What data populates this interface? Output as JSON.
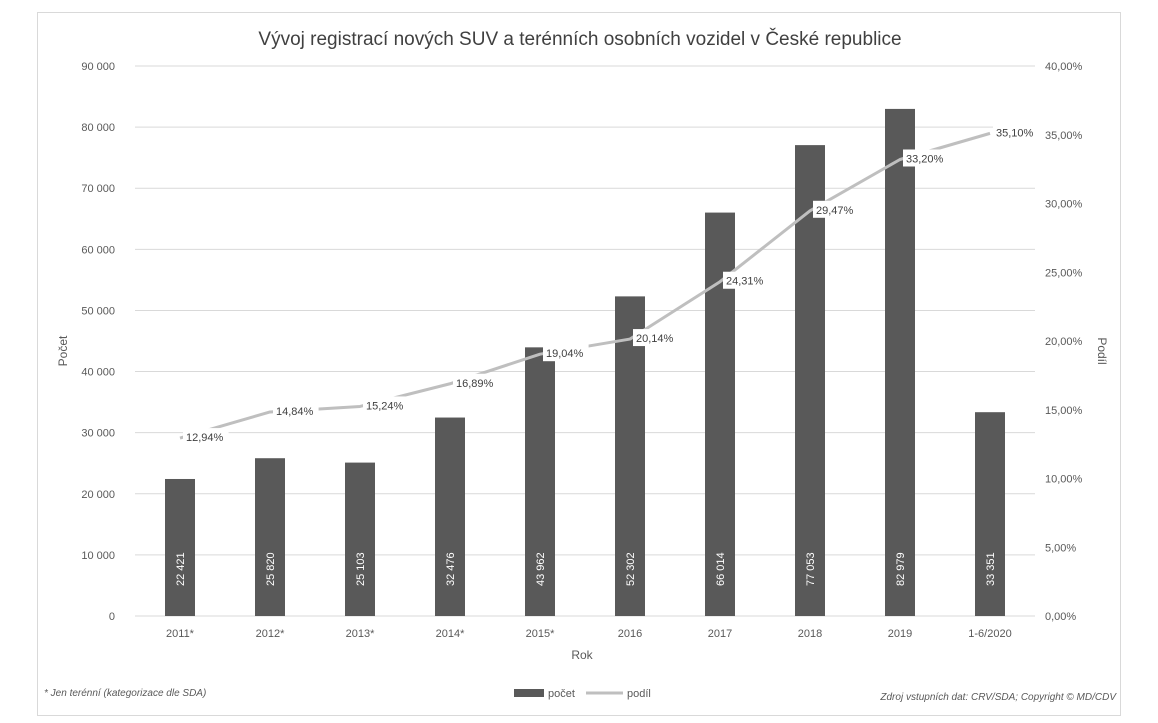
{
  "chart_data": {
    "type": "bar",
    "title": "Vývoj registrací nových SUV a terénních osobních vozidel v České republice",
    "xlabel": "Rok",
    "ylabel": "Počet",
    "y2label": "Podíl",
    "categories": [
      "2011*",
      "2012*",
      "2013*",
      "2014*",
      "2015*",
      "2016",
      "2017",
      "2018",
      "2019",
      "1-6/2020"
    ],
    "ylim": [
      0,
      90000
    ],
    "y2lim": [
      0,
      40
    ],
    "yticks": [
      "0",
      "10 000",
      "20 000",
      "30 000",
      "40 000",
      "50 000",
      "60 000",
      "70 000",
      "80 000",
      "90 000"
    ],
    "y2ticks": [
      "0,00%",
      "5,00%",
      "10,00%",
      "15,00%",
      "20,00%",
      "25,00%",
      "30,00%",
      "35,00%",
      "40,00%"
    ],
    "grid": true,
    "legend_position": "bottom",
    "series": [
      {
        "name": "počet",
        "type": "bar",
        "color": "#595959",
        "values": [
          22421,
          25820,
          25103,
          32476,
          43962,
          52302,
          66014,
          77053,
          82979,
          33351
        ],
        "labels": [
          "22 421",
          "25 820",
          "25 103",
          "32 476",
          "43 962",
          "52 302",
          "66 014",
          "77 053",
          "82 979",
          "33 351"
        ]
      },
      {
        "name": "podíl",
        "type": "line",
        "axis": "right",
        "color": "#bfbfbf",
        "x_positions": [
          0,
          1,
          2,
          3,
          4,
          5,
          6,
          7,
          8,
          9
        ],
        "values": [
          12.94,
          14.84,
          15.24,
          16.89,
          19.04,
          20.14,
          24.31,
          29.47,
          33.2,
          35.1
        ],
        "labels": [
          "12,94%",
          "14,84%",
          "15,24%",
          "16,89%",
          "19,04%",
          "20,14%",
          "24,31%",
          "29,47%",
          "33,20%",
          "35,10%"
        ]
      }
    ],
    "footnote": "* Jen terénní (kategorizace dle SDA)",
    "source": "Zdroj vstupních dat: CRV/SDA; Copyright © MD/CDV"
  }
}
